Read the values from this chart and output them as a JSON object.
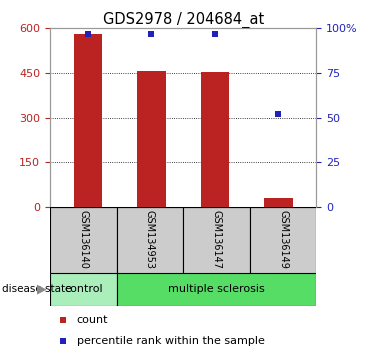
{
  "title": "GDS2978 / 204684_at",
  "samples": [
    "GSM136140",
    "GSM134953",
    "GSM136147",
    "GSM136149"
  ],
  "counts": [
    580,
    457,
    455,
    32
  ],
  "percentiles": [
    97,
    97,
    97,
    52
  ],
  "ylim_left": [
    0,
    600
  ],
  "ylim_right": [
    0,
    100
  ],
  "yticks_left": [
    0,
    150,
    300,
    450,
    600
  ],
  "yticks_right": [
    0,
    25,
    50,
    75,
    100
  ],
  "bar_color": "#bb2222",
  "dot_color": "#2222bb",
  "bar_width": 0.45,
  "disease_state_label": "disease state",
  "control_color": "#aaeebb",
  "ms_color": "#55dd66",
  "sample_box_color": "#cccccc",
  "bg_color": "#ffffff",
  "legend_count_label": "count",
  "legend_pct_label": "percentile rank within the sample",
  "title_fontsize": 10.5,
  "tick_fontsize": 8,
  "sample_label_fontsize": 7,
  "disease_fontsize": 8,
  "legend_fontsize": 8
}
